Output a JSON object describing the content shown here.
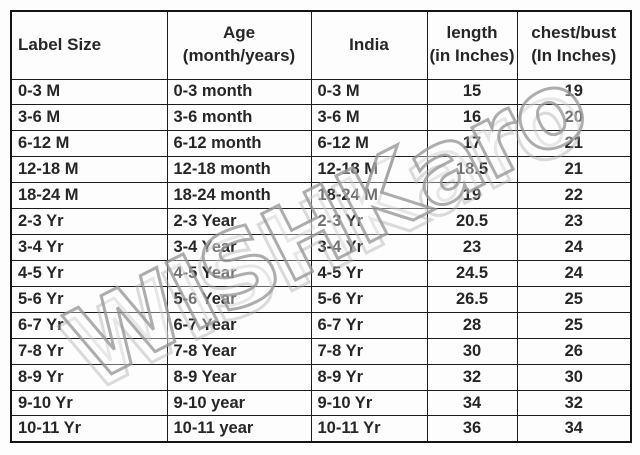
{
  "table": {
    "headers": [
      {
        "lines": [
          "Label Size"
        ]
      },
      {
        "lines": [
          "Age",
          "(month/years)"
        ]
      },
      {
        "lines": [
          "India"
        ]
      },
      {
        "lines": [
          "length",
          "(in Inches)"
        ]
      },
      {
        "lines": [
          "chest/bust",
          "(In Inches)"
        ]
      }
    ],
    "rows": [
      [
        "0-3 M",
        "0-3 month",
        "0-3 M",
        "15",
        "19"
      ],
      [
        "3-6 M",
        "3-6 month",
        "3-6 M",
        "16",
        "20"
      ],
      [
        "6-12 M",
        "6-12 month",
        "6-12 M",
        "17",
        "21"
      ],
      [
        "12-18 M",
        "12-18 month",
        "12-18 M",
        "18.5",
        "21"
      ],
      [
        "18-24 M",
        "18-24 month",
        "18-24 M",
        "19",
        "22"
      ],
      [
        "2-3 Yr",
        "2-3 Year",
        "2-3 Yr",
        "20.5",
        "23"
      ],
      [
        "3-4 Yr",
        "3-4 Year",
        "3-4 Yr",
        "23",
        "24"
      ],
      [
        "4-5 Yr",
        "4-5 Year",
        "4-5 Yr",
        "24.5",
        "24"
      ],
      [
        "5-6 Yr",
        "5-6 Year",
        "5-6 Yr",
        "26.5",
        "25"
      ],
      [
        "6-7 Yr",
        "6-7 Year",
        "6-7 Yr",
        "28",
        "25"
      ],
      [
        "7-8 Yr",
        "7-8 Year",
        "7-8 Yr",
        "30",
        "26"
      ],
      [
        "8-9 Yr",
        "8-9 Year",
        "8-9 Yr",
        "32",
        "30"
      ],
      [
        "9-10 Yr",
        "9-10 year",
        "9-10 Yr",
        "34",
        "32"
      ],
      [
        "10-11 Yr",
        "10-11 year",
        "10-11 Yr",
        "36",
        "34"
      ]
    ]
  },
  "watermark": {
    "text": "WISHKaro"
  },
  "colors": {
    "table_text": "#262626",
    "table_border": "#1c1c1c",
    "watermark_outline": "#969696",
    "background": "#fdfdfd"
  }
}
